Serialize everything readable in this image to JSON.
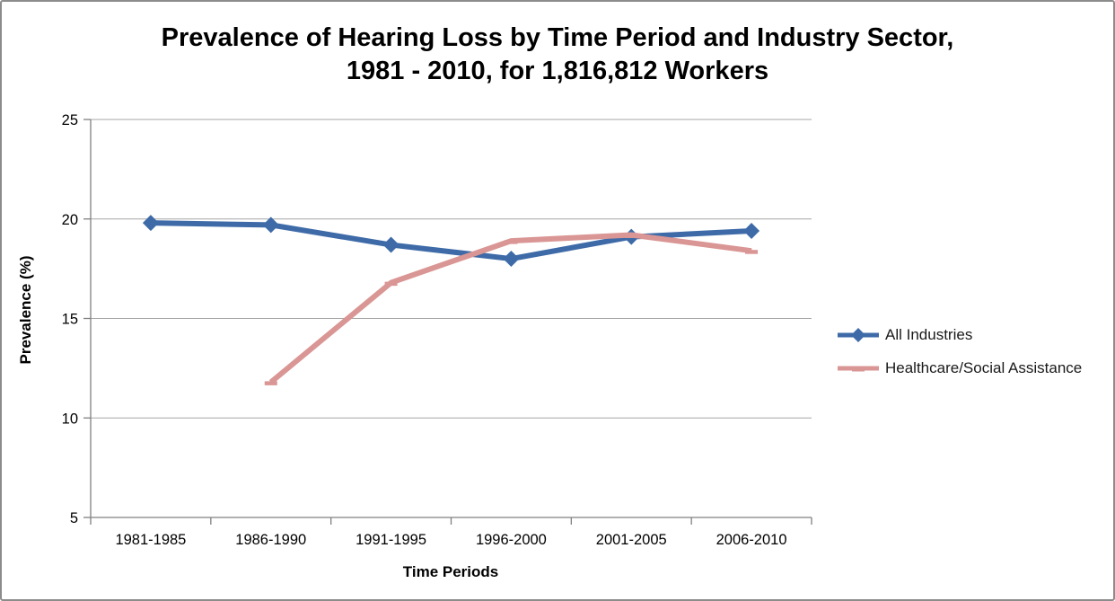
{
  "chart_data": {
    "type": "line",
    "title_line1": "Prevalence of Hearing Loss by Time Period and Industry Sector,",
    "title_line2": "1981 - 2010, for 1,816,812 Workers",
    "xlabel": "Time Periods",
    "ylabel": "Prevalence (%)",
    "categories": [
      "1981-1985",
      "1986-1990",
      "1991-1995",
      "1996-2000",
      "2001-2005",
      "2006-2010"
    ],
    "series": [
      {
        "name": "All Industries",
        "color": "#3E6BA8",
        "marker": "diamond",
        "values": [
          19.8,
          19.7,
          18.7,
          18.0,
          19.1,
          19.4
        ]
      },
      {
        "name": "Healthcare/Social Assistance",
        "color": "#D99694",
        "marker": "dash",
        "values": [
          null,
          11.8,
          16.8,
          18.9,
          19.2,
          18.4
        ]
      }
    ],
    "ylim": [
      5,
      25
    ],
    "yticks": [
      5,
      10,
      15,
      20,
      25
    ],
    "grid": true,
    "legend_position": "right",
    "gridline_color": "#A6A6A6",
    "axis_color": "#808080",
    "tick_label_color": "#000000"
  }
}
